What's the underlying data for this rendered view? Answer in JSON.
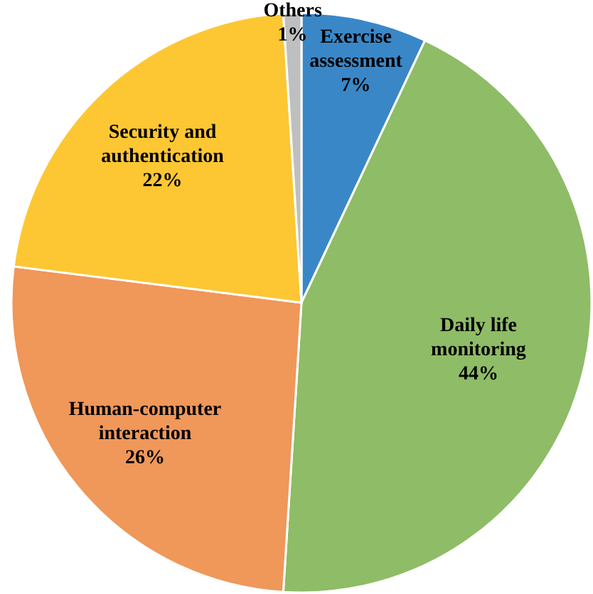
{
  "chart_data": {
    "type": "pie",
    "categories": [
      "Exercise assessment",
      "Daily life monitoring",
      "Human-computer interaction",
      "Security and authentication",
      "Others"
    ],
    "values": [
      7,
      44,
      26,
      22,
      1
    ],
    "value_labels": [
      "7%",
      "44%",
      "26%",
      "22%",
      "1%"
    ],
    "colors": [
      "#3a87c8",
      "#8fbc66",
      "#f0975a",
      "#fdc733",
      "#bfbfbf"
    ]
  }
}
